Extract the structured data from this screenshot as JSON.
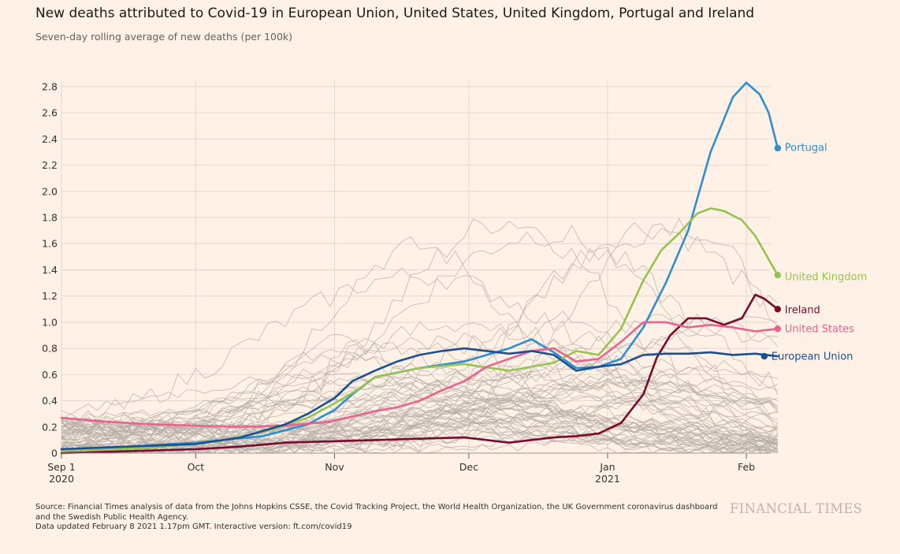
{
  "title": "New deaths attributed to Covid-19 in European Union, United States, United Kingdom, Portugal and Ireland",
  "subtitle": "Seven-day rolling average of new deaths (per 100k)",
  "footer": {
    "line1": "Source: Financial Times analysis of data from the Johns Hopkins CSSE, the Covid Tracking Project, the World Health Organization, the UK Government coronavirus dashboard and the Swedish Public Health Agency.",
    "line2": "Data updated February 8 2021 1.17pm GMT. Interactive version: ft.com/covid19"
  },
  "brand": "FINANCIAL TIMES",
  "colors": {
    "Portugal": "#2e8fd0",
    "United Kingdom": "#96c350",
    "Ireland": "#7a0a2e",
    "United States": "#e8638f",
    "European Union": "#1b4f93",
    "background_lines": "#b3aba5",
    "grid": "#e3d8cf"
  },
  "chart_data": {
    "type": "line",
    "title": "New deaths attributed to Covid-19 in European Union, United States, United Kingdom, Portugal and Ireland",
    "ylabel": "Seven-day rolling average of new deaths (per 100k)",
    "xlabel": "",
    "ylim": [
      0,
      2.85
    ],
    "xlim": [
      "2020-09-01",
      "2021-02-08"
    ],
    "y_ticks": [
      0,
      0.2,
      0.4,
      0.6,
      0.8,
      1.0,
      1.2,
      1.4,
      1.6,
      1.8,
      2.0,
      2.2,
      2.4,
      2.6,
      2.8
    ],
    "y_tick_labels": [
      "0",
      "0.2",
      "0.4",
      "0.6",
      "0.8",
      "1.0",
      "1.2",
      "1.4",
      "1.6",
      "1.8",
      "2.0",
      "2.2",
      "2.4",
      "2.6",
      "2.8"
    ],
    "x_ticks": [
      {
        "day": 0,
        "label": "Sep 1",
        "sublabel": "2020"
      },
      {
        "day": 30,
        "label": "Oct",
        "sublabel": ""
      },
      {
        "day": 61,
        "label": "Nov",
        "sublabel": ""
      },
      {
        "day": 91,
        "label": "Dec",
        "sublabel": ""
      },
      {
        "day": 122,
        "label": "Jan",
        "sublabel": "2021"
      },
      {
        "day": 153,
        "label": "Feb",
        "sublabel": ""
      }
    ],
    "x_unit": "days since 2020-09-01",
    "series": [
      {
        "name": "Portugal",
        "end_label": "Portugal",
        "x": [
          0,
          15,
          30,
          45,
          55,
          61,
          65,
          70,
          80,
          90,
          100,
          105,
          110,
          115,
          120,
          125,
          130,
          135,
          140,
          145,
          150,
          153,
          156,
          158,
          160
        ],
        "y": [
          0.03,
          0.05,
          0.08,
          0.13,
          0.22,
          0.33,
          0.45,
          0.58,
          0.65,
          0.7,
          0.8,
          0.87,
          0.77,
          0.65,
          0.66,
          0.72,
          0.96,
          1.3,
          1.7,
          2.3,
          2.72,
          2.83,
          2.74,
          2.6,
          2.33
        ]
      },
      {
        "name": "United Kingdom",
        "end_label": "United Kingdom",
        "x": [
          0,
          20,
          35,
          45,
          55,
          61,
          66,
          70,
          80,
          90,
          100,
          110,
          115,
          120,
          125,
          130,
          134,
          138,
          142,
          145,
          148,
          152,
          155,
          158,
          160
        ],
        "y": [
          0.02,
          0.04,
          0.09,
          0.16,
          0.27,
          0.38,
          0.48,
          0.58,
          0.65,
          0.68,
          0.63,
          0.69,
          0.78,
          0.75,
          0.95,
          1.32,
          1.55,
          1.68,
          1.83,
          1.87,
          1.85,
          1.78,
          1.66,
          1.48,
          1.36
        ]
      },
      {
        "name": "Ireland",
        "end_label": "Ireland",
        "x": [
          0,
          10,
          20,
          30,
          40,
          50,
          60,
          70,
          80,
          90,
          100,
          110,
          115,
          120,
          125,
          130,
          133,
          136,
          140,
          144,
          148,
          152,
          155,
          157,
          160
        ],
        "y": [
          0.0,
          0.01,
          0.02,
          0.03,
          0.05,
          0.08,
          0.09,
          0.1,
          0.11,
          0.12,
          0.08,
          0.12,
          0.13,
          0.15,
          0.23,
          0.45,
          0.73,
          0.9,
          1.03,
          1.03,
          0.98,
          1.03,
          1.21,
          1.18,
          1.1
        ]
      },
      {
        "name": "United States",
        "end_label": "United States",
        "x": [
          0,
          10,
          20,
          30,
          40,
          50,
          60,
          65,
          70,
          75,
          80,
          85,
          90,
          95,
          100,
          105,
          110,
          115,
          120,
          125,
          130,
          135,
          140,
          145,
          150,
          155,
          160
        ],
        "y": [
          0.27,
          0.24,
          0.22,
          0.21,
          0.2,
          0.21,
          0.24,
          0.28,
          0.32,
          0.35,
          0.4,
          0.48,
          0.55,
          0.66,
          0.72,
          0.78,
          0.8,
          0.7,
          0.72,
          0.85,
          1.0,
          1.0,
          0.96,
          0.98,
          0.96,
          0.93,
          0.95
        ]
      },
      {
        "name": "European Union",
        "end_label": "European Union",
        "x": [
          0,
          15,
          30,
          40,
          50,
          55,
          61,
          65,
          70,
          75,
          80,
          85,
          90,
          95,
          100,
          105,
          110,
          115,
          120,
          125,
          130,
          135,
          140,
          145,
          150,
          155,
          160
        ],
        "y": [
          0.03,
          0.05,
          0.07,
          0.12,
          0.22,
          0.3,
          0.42,
          0.55,
          0.63,
          0.7,
          0.75,
          0.78,
          0.8,
          0.78,
          0.76,
          0.78,
          0.75,
          0.63,
          0.66,
          0.68,
          0.75,
          0.76,
          0.76,
          0.77,
          0.75,
          0.76,
          0.74
        ]
      }
    ]
  }
}
